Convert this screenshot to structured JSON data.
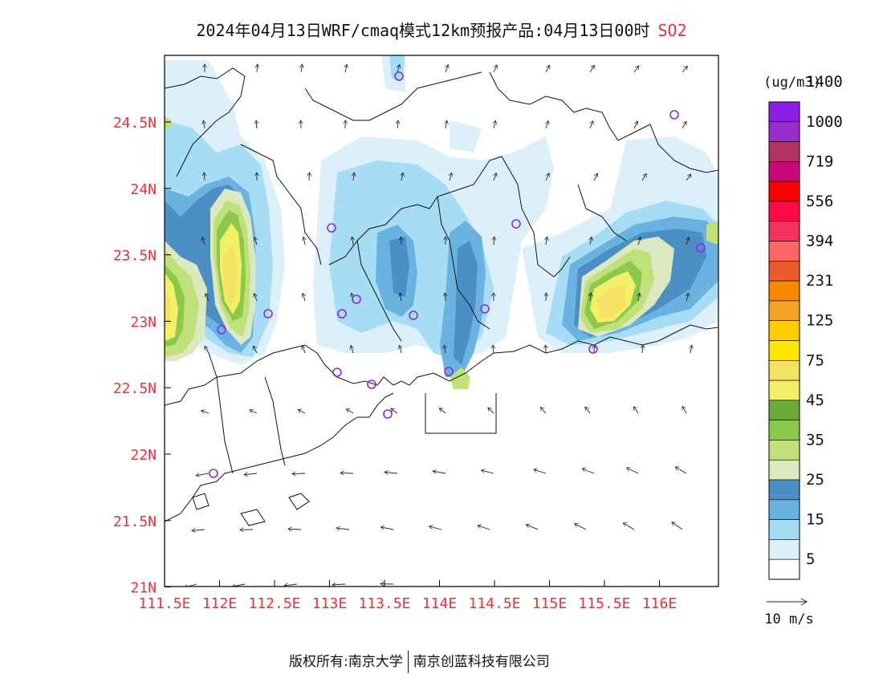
{
  "title": {
    "main": "2024年04月13日WRF/cmaq模式12km预报产品:04月13日00时",
    "species": "SO2"
  },
  "map": {
    "lat_labels": [
      "24.5N",
      "24N",
      "23.5N",
      "23N",
      "22.5N",
      "22N",
      "21.5N",
      "21N"
    ],
    "lon_labels": [
      "111.5E",
      "112E",
      "112.5E",
      "113E",
      "113.5E",
      "114E",
      "114.5E",
      "115E",
      "115.5E",
      "116E"
    ],
    "label_color": "#e8323c"
  },
  "colorbar": {
    "unit": "(ug/m3)",
    "labels": [
      "5",
      "15",
      "25",
      "35",
      "45",
      "75",
      "125",
      "231",
      "394",
      "556",
      "719",
      "1000",
      "1400"
    ],
    "colors": [
      "#ffffff",
      "#dcf0fb",
      "#a6dcf4",
      "#6ab2e0",
      "#4a90c4",
      "#dce8c0",
      "#c0e07a",
      "#8cc84a",
      "#6aaa3c",
      "#f2f066",
      "#f5e164",
      "#ffe600",
      "#ffcc00",
      "#f5a428",
      "#f58a00",
      "#ec5a2e",
      "#ff6464",
      "#f5325a",
      "#ff0a46",
      "#ff0000",
      "#c80a78",
      "#b43264",
      "#9a2ccc",
      "#8c1ee6"
    ]
  },
  "wind_scale": {
    "label": "10 m/s"
  },
  "footer": {
    "left": "版权所有:南京大学",
    "right": "南京创蓝科技有限公司"
  }
}
